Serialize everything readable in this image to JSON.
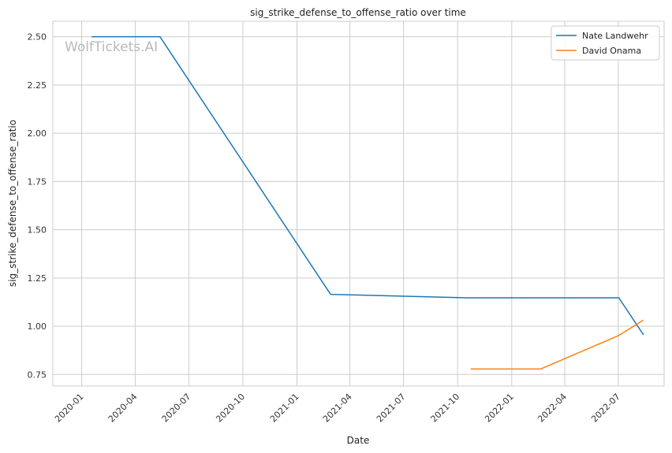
{
  "chart_data": {
    "type": "line",
    "title": "sig_strike_defense_to_offense_ratio over time",
    "xlabel": "Date",
    "ylabel": "sig_strike_defense_to_offense_ratio",
    "watermark": "WolfTickets.AI",
    "x_ticks": [
      "2020-01",
      "2020-04",
      "2020-07",
      "2020-10",
      "2021-01",
      "2021-04",
      "2021-07",
      "2021-10",
      "2022-01",
      "2022-04",
      "2022-07"
    ],
    "y_ticks": [
      "0.75",
      "1.00",
      "1.25",
      "1.50",
      "1.75",
      "2.00",
      "2.25",
      "2.50"
    ],
    "xlim": [
      "2019-11-13",
      "2022-09-17"
    ],
    "ylim": [
      0.69,
      2.58
    ],
    "grid": true,
    "legend_position": "top-right",
    "series": [
      {
        "name": "Nate Landwehr",
        "color": "#1f77b4",
        "points": [
          {
            "x": "2020-01-18",
            "y": 2.5
          },
          {
            "x": "2020-05-13",
            "y": 2.5
          },
          {
            "x": "2021-02-27",
            "y": 1.165
          },
          {
            "x": "2021-10-16",
            "y": 1.147
          },
          {
            "x": "2022-07-02",
            "y": 1.147
          },
          {
            "x": "2022-08-13",
            "y": 0.955
          }
        ]
      },
      {
        "name": "David Onama",
        "color": "#ff7f0e",
        "points": [
          {
            "x": "2021-10-23",
            "y": 0.778
          },
          {
            "x": "2022-02-19",
            "y": 0.778
          },
          {
            "x": "2022-07-02",
            "y": 0.952
          },
          {
            "x": "2022-08-13",
            "y": 1.032
          }
        ]
      }
    ]
  }
}
